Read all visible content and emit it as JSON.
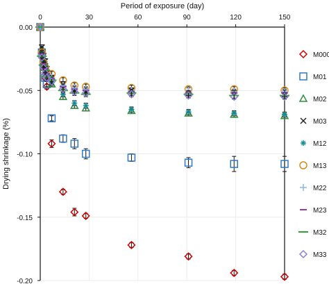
{
  "chart_data": {
    "type": "scatter",
    "title": "",
    "xlabel": "Period of exposure (day)",
    "ylabel": "Drying shrinkage (%)",
    "xlim": [
      0,
      150
    ],
    "ylim": [
      -0.2,
      0.0
    ],
    "x_ticks": [
      0,
      30,
      60,
      90,
      120,
      150
    ],
    "x_tick_labels": [
      "0",
      "30",
      "60",
      "90",
      "120",
      "150"
    ],
    "y_ticks": [
      0.0,
      -0.05,
      -0.1,
      -0.15,
      -0.2
    ],
    "y_tick_labels": [
      "0.00",
      "-0.05",
      "-0.10",
      "-0.15",
      "-0.20"
    ],
    "grid": true,
    "legend_position": "right",
    "x": [
      0,
      1,
      2,
      3,
      4,
      7,
      14,
      21,
      28,
      56,
      91,
      119,
      150
    ],
    "series": [
      {
        "name": "M000",
        "color": "#cc0000",
        "marker": "diamond",
        "values": [
          0.0,
          -0.02,
          -0.03,
          -0.04,
          -0.047,
          -0.092,
          -0.13,
          -0.146,
          -0.149,
          -0.172,
          -0.181,
          -0.194,
          -0.197
        ],
        "error": [
          0.0,
          0.002,
          0.002,
          0.002,
          0.002,
          0.003,
          0.002,
          0.003,
          0.002,
          0.002,
          0.002,
          0.002,
          0.002
        ]
      },
      {
        "name": "M01",
        "color": "#2f78c4",
        "marker": "square",
        "values": [
          0.0,
          -0.02,
          -0.03,
          -0.04,
          -0.045,
          -0.072,
          -0.088,
          -0.092,
          -0.1,
          -0.103,
          -0.107,
          -0.108,
          -0.108
        ],
        "error": [
          0.0,
          0.002,
          0.002,
          0.002,
          0.002,
          0.002,
          0.003,
          0.004,
          0.004,
          0.003,
          0.004,
          0.006,
          0.006
        ]
      },
      {
        "name": "M02",
        "color": "#2f8f3a",
        "marker": "triangle",
        "values": [
          0.0,
          -0.018,
          -0.025,
          -0.03,
          -0.036,
          -0.045,
          -0.055,
          -0.062,
          -0.064,
          -0.066,
          -0.068,
          -0.069,
          -0.07
        ],
        "error": [
          0.0,
          0.002,
          0.002,
          0.002,
          0.002,
          0.002,
          0.002,
          0.002,
          0.002,
          0.002,
          0.002,
          0.002,
          0.002
        ]
      },
      {
        "name": "M03",
        "color": "#222222",
        "marker": "x",
        "values": [
          0.0,
          -0.016,
          -0.023,
          -0.027,
          -0.033,
          -0.04,
          -0.045,
          -0.05,
          -0.051,
          -0.05,
          -0.052,
          -0.052,
          -0.053
        ],
        "error": [
          0.0,
          0.002,
          0.002,
          0.002,
          0.002,
          0.002,
          0.002,
          0.002,
          0.002,
          0.002,
          0.002,
          0.002,
          0.002
        ]
      },
      {
        "name": "M12",
        "color": "#148a96",
        "marker": "star",
        "values": [
          0.0,
          -0.02,
          -0.026,
          -0.032,
          -0.037,
          -0.044,
          -0.053,
          -0.06,
          -0.062,
          -0.065,
          -0.067,
          -0.068,
          -0.069
        ],
        "error": [
          0.0,
          0.002,
          0.002,
          0.002,
          0.002,
          0.002,
          0.002,
          0.002,
          0.002,
          0.002,
          0.002,
          0.002,
          0.002
        ]
      },
      {
        "name": "M13",
        "color": "#d98b1c",
        "marker": "circle",
        "values": [
          0.0,
          -0.02,
          -0.028,
          -0.032,
          -0.036,
          -0.037,
          -0.042,
          -0.046,
          -0.047,
          -0.048,
          -0.049,
          -0.049,
          -0.05
        ],
        "error": [
          0.0,
          0.002,
          0.002,
          0.002,
          0.002,
          0.002,
          0.002,
          0.002,
          0.002,
          0.002,
          0.002,
          0.002,
          0.002
        ]
      },
      {
        "name": "M22",
        "color": "#8fb7e8",
        "marker": "plus",
        "values": [
          0.0,
          -0.022,
          -0.03,
          -0.034,
          -0.038,
          -0.04,
          -0.046,
          -0.048,
          -0.049,
          -0.05,
          -0.05,
          -0.051,
          -0.051
        ],
        "error": [
          0.0,
          0.002,
          0.002,
          0.002,
          0.002,
          0.002,
          0.002,
          0.002,
          0.002,
          0.002,
          0.002,
          0.002,
          0.002
        ]
      },
      {
        "name": "M23",
        "color": "#9b3aa3",
        "marker": "dash",
        "values": [
          0.0,
          -0.021,
          -0.029,
          -0.033,
          -0.037,
          -0.041,
          -0.047,
          -0.049,
          -0.05,
          -0.051,
          -0.052,
          -0.052,
          -0.052
        ],
        "error": [
          0.0,
          0.002,
          0.002,
          0.002,
          0.002,
          0.002,
          0.002,
          0.002,
          0.002,
          0.002,
          0.002,
          0.002,
          0.002
        ]
      },
      {
        "name": "M32",
        "color": "#2ea52e",
        "marker": "line",
        "values": [
          0.0,
          -0.023,
          -0.03,
          -0.034,
          -0.039,
          -0.042,
          -0.05,
          -0.052,
          -0.053,
          -0.052,
          -0.053,
          -0.054,
          -0.054
        ],
        "error": [
          0.0,
          0.002,
          0.002,
          0.002,
          0.002,
          0.002,
          0.002,
          0.002,
          0.002,
          0.002,
          0.002,
          0.002,
          0.002
        ]
      },
      {
        "name": "M33",
        "color": "#8c7fd6",
        "marker": "diamond",
        "values": [
          0.0,
          -0.024,
          -0.032,
          -0.036,
          -0.04,
          -0.043,
          -0.049,
          -0.051,
          -0.052,
          -0.053,
          -0.054,
          -0.055,
          -0.055
        ],
        "error": [
          0.0,
          0.002,
          0.002,
          0.002,
          0.002,
          0.002,
          0.002,
          0.002,
          0.002,
          0.002,
          0.002,
          0.002,
          0.002
        ]
      }
    ]
  }
}
